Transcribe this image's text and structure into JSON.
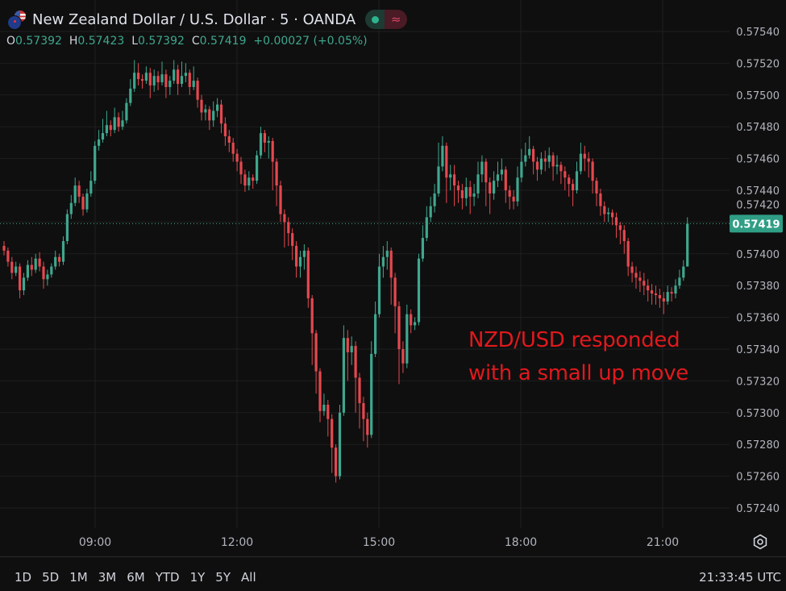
{
  "header": {
    "title": "New Zealand Dollar / U.S. Dollar · 5 · OANDA",
    "flag_icon": "nzd-usd-flags-icon",
    "status_icons": [
      "market-open-dot-icon",
      "delayed-data-icon"
    ],
    "ohlc": {
      "o_label": "O",
      "o": "0.57392",
      "h_label": "H",
      "h": "0.57423",
      "l_label": "L",
      "l": "0.57392",
      "c_label": "C",
      "c": "0.57419",
      "change": "+0.00027 (+0.05%)"
    }
  },
  "annotation": {
    "line1": "NZD/USD responded",
    "line2": "with a small up move",
    "color": "#e0191d"
  },
  "bottom_bar": {
    "ranges": [
      "1D",
      "5D",
      "1M",
      "3M",
      "6M",
      "YTD",
      "1Y",
      "5Y",
      "All"
    ],
    "clock": "21:33:45 UTC",
    "settings_icon": "settings-gear-icon"
  },
  "colors": {
    "background": "#0f0f0f",
    "up": "#3fa78e",
    "down": "#e5484f",
    "grid": "#1f1f1f",
    "last_price_label": "#2f9e85"
  },
  "chart_data": {
    "type": "candlestick",
    "symbol": "NZD/USD",
    "interval": "5",
    "last_price": 0.57419,
    "last_price_label": "0.57419",
    "ylim": [
      0.57225,
      0.5755
    ],
    "y_ticks": [
      "0.57540",
      "0.57520",
      "0.57500",
      "0.57480",
      "0.57460",
      "0.57440",
      "0.57420",
      "0.57400",
      "0.57380",
      "0.57360",
      "0.57340",
      "0.57320",
      "0.57300",
      "0.57280",
      "0.57260",
      "0.57240"
    ],
    "x_ticks": [
      "09:00",
      "12:00",
      "15:00",
      "18:00",
      "21:00"
    ],
    "grid": true,
    "ohlc": [
      [
        0.57405,
        0.57408,
        0.57399,
        0.57402
      ],
      [
        0.57402,
        0.57404,
        0.57392,
        0.57395
      ],
      [
        0.57395,
        0.57398,
        0.57384,
        0.57388
      ],
      [
        0.57388,
        0.57395,
        0.57386,
        0.57392
      ],
      [
        0.57392,
        0.57394,
        0.57372,
        0.57377
      ],
      [
        0.57377,
        0.57388,
        0.57374,
        0.57385
      ],
      [
        0.57385,
        0.57396,
        0.57383,
        0.57393
      ],
      [
        0.57393,
        0.57398,
        0.57386,
        0.5739
      ],
      [
        0.5739,
        0.574,
        0.57388,
        0.57397
      ],
      [
        0.57397,
        0.57401,
        0.57389,
        0.57392
      ],
      [
        0.57392,
        0.57395,
        0.57378,
        0.57384
      ],
      [
        0.57384,
        0.5739,
        0.5738,
        0.57387
      ],
      [
        0.57387,
        0.57394,
        0.57385,
        0.57392
      ],
      [
        0.57392,
        0.57402,
        0.5739,
        0.57398
      ],
      [
        0.57398,
        0.574,
        0.57392,
        0.57395
      ],
      [
        0.57395,
        0.57411,
        0.57393,
        0.57408
      ],
      [
        0.57408,
        0.57428,
        0.57406,
        0.57425
      ],
      [
        0.57425,
        0.57437,
        0.57422,
        0.57432
      ],
      [
        0.57432,
        0.57448,
        0.5743,
        0.57443
      ],
      [
        0.57443,
        0.57446,
        0.57432,
        0.57436
      ],
      [
        0.57436,
        0.57438,
        0.57424,
        0.57428
      ],
      [
        0.57428,
        0.57441,
        0.57426,
        0.57438
      ],
      [
        0.57438,
        0.57452,
        0.57436,
        0.57446
      ],
      [
        0.57446,
        0.57471,
        0.57444,
        0.57468
      ],
      [
        0.57468,
        0.57478,
        0.57465,
        0.57472
      ],
      [
        0.57472,
        0.57485,
        0.5747,
        0.57476
      ],
      [
        0.57476,
        0.5749,
        0.57474,
        0.57481
      ],
      [
        0.57481,
        0.57484,
        0.57474,
        0.57478
      ],
      [
        0.57478,
        0.57492,
        0.57476,
        0.57486
      ],
      [
        0.57486,
        0.57489,
        0.57477,
        0.5748
      ],
      [
        0.5748,
        0.5749,
        0.57478,
        0.57484
      ],
      [
        0.57484,
        0.57498,
        0.57482,
        0.57495
      ],
      [
        0.57495,
        0.5751,
        0.57493,
        0.57504
      ],
      [
        0.57504,
        0.57522,
        0.57502,
        0.57514
      ],
      [
        0.57514,
        0.5752,
        0.57506,
        0.5751
      ],
      [
        0.5751,
        0.57513,
        0.57504,
        0.57509
      ],
      [
        0.57509,
        0.57518,
        0.57507,
        0.57514
      ],
      [
        0.57514,
        0.57517,
        0.57498,
        0.57506
      ],
      [
        0.57506,
        0.57516,
        0.57502,
        0.57512
      ],
      [
        0.57512,
        0.57515,
        0.57503,
        0.57508
      ],
      [
        0.57508,
        0.57521,
        0.57506,
        0.57513
      ],
      [
        0.57513,
        0.57516,
        0.57498,
        0.57505
      ],
      [
        0.57505,
        0.57512,
        0.575,
        0.57509
      ],
      [
        0.57509,
        0.57522,
        0.57507,
        0.57516
      ],
      [
        0.57516,
        0.57519,
        0.575,
        0.57507
      ],
      [
        0.57507,
        0.57521,
        0.57505,
        0.57512
      ],
      [
        0.57512,
        0.5752,
        0.57508,
        0.57514
      ],
      [
        0.57514,
        0.57516,
        0.575,
        0.57505
      ],
      [
        0.57505,
        0.57518,
        0.57503,
        0.57509
      ],
      [
        0.57509,
        0.57511,
        0.57492,
        0.57497
      ],
      [
        0.57497,
        0.575,
        0.57484,
        0.57489
      ],
      [
        0.57489,
        0.57494,
        0.57484,
        0.57491
      ],
      [
        0.57491,
        0.57493,
        0.57478,
        0.57484
      ],
      [
        0.57484,
        0.57496,
        0.5748,
        0.5749
      ],
      [
        0.5749,
        0.57498,
        0.57486,
        0.57494
      ],
      [
        0.57494,
        0.57497,
        0.57476,
        0.57482
      ],
      [
        0.57482,
        0.57486,
        0.57468,
        0.57474
      ],
      [
        0.57474,
        0.57478,
        0.57464,
        0.5747
      ],
      [
        0.5747,
        0.57473,
        0.57458,
        0.57463
      ],
      [
        0.57463,
        0.57466,
        0.57452,
        0.57458
      ],
      [
        0.57458,
        0.57461,
        0.57444,
        0.5745
      ],
      [
        0.5745,
        0.57453,
        0.57439,
        0.57443
      ],
      [
        0.57443,
        0.57452,
        0.5744,
        0.57448
      ],
      [
        0.57448,
        0.5745,
        0.57441,
        0.57446
      ],
      [
        0.57446,
        0.57465,
        0.57444,
        0.57462
      ],
      [
        0.57462,
        0.5748,
        0.5746,
        0.57476
      ],
      [
        0.57476,
        0.57478,
        0.57464,
        0.5747
      ],
      [
        0.5747,
        0.57474,
        0.5746,
        0.57471
      ],
      [
        0.57471,
        0.57473,
        0.5744,
        0.57458
      ],
      [
        0.57458,
        0.5746,
        0.5743,
        0.57443
      ],
      [
        0.57443,
        0.57446,
        0.5742,
        0.57425
      ],
      [
        0.57425,
        0.57428,
        0.57404,
        0.5742
      ],
      [
        0.5742,
        0.57423,
        0.57405,
        0.57413
      ],
      [
        0.57413,
        0.57416,
        0.57396,
        0.57405
      ],
      [
        0.57405,
        0.57408,
        0.57385,
        0.57392
      ],
      [
        0.57392,
        0.57402,
        0.57385,
        0.57398
      ],
      [
        0.57398,
        0.57406,
        0.5739,
        0.57402
      ],
      [
        0.57402,
        0.57404,
        0.57366,
        0.57372
      ],
      [
        0.57372,
        0.57374,
        0.5733,
        0.5735
      ],
      [
        0.5735,
        0.57352,
        0.57312,
        0.57326
      ],
      [
        0.57326,
        0.57328,
        0.57294,
        0.57301
      ],
      [
        0.57301,
        0.57312,
        0.57298,
        0.57305
      ],
      [
        0.57305,
        0.57308,
        0.57285,
        0.57296
      ],
      [
        0.57296,
        0.57299,
        0.57262,
        0.57278
      ],
      [
        0.57278,
        0.5728,
        0.57256,
        0.5726
      ],
      [
        0.5726,
        0.57305,
        0.57258,
        0.573
      ],
      [
        0.573,
        0.57355,
        0.57298,
        0.57347
      ],
      [
        0.57347,
        0.57352,
        0.5732,
        0.57338
      ],
      [
        0.57338,
        0.57348,
        0.5733,
        0.57342
      ],
      [
        0.57342,
        0.57345,
        0.573,
        0.57322
      ],
      [
        0.57322,
        0.57325,
        0.5729,
        0.57306
      ],
      [
        0.57306,
        0.5731,
        0.57282,
        0.57296
      ],
      [
        0.57296,
        0.573,
        0.57278,
        0.57286
      ],
      [
        0.57286,
        0.57345,
        0.57284,
        0.57337
      ],
      [
        0.57337,
        0.5737,
        0.57335,
        0.57362
      ],
      [
        0.57362,
        0.574,
        0.5736,
        0.57392
      ],
      [
        0.57392,
        0.57405,
        0.57385,
        0.57398
      ],
      [
        0.57398,
        0.57408,
        0.5739,
        0.57402
      ],
      [
        0.57402,
        0.57404,
        0.57368,
        0.57385
      ],
      [
        0.57385,
        0.57388,
        0.5735,
        0.57367
      ],
      [
        0.57367,
        0.5737,
        0.57318,
        0.5734
      ],
      [
        0.5734,
        0.57345,
        0.57325,
        0.57331
      ],
      [
        0.57331,
        0.57368,
        0.57328,
        0.57362
      ],
      [
        0.57362,
        0.57365,
        0.5735,
        0.57355
      ],
      [
        0.57355,
        0.5736,
        0.57352,
        0.57357
      ],
      [
        0.57357,
        0.574,
        0.57355,
        0.57397
      ],
      [
        0.57397,
        0.57418,
        0.57395,
        0.5741
      ],
      [
        0.5741,
        0.5743,
        0.57408,
        0.57423
      ],
      [
        0.57423,
        0.57436,
        0.5742,
        0.5743
      ],
      [
        0.5743,
        0.57444,
        0.57426,
        0.57438
      ],
      [
        0.57438,
        0.5747,
        0.57436,
        0.57455
      ],
      [
        0.57455,
        0.57474,
        0.57452,
        0.57468
      ],
      [
        0.57468,
        0.5747,
        0.57432,
        0.57448
      ],
      [
        0.57448,
        0.57456,
        0.5744,
        0.5745
      ],
      [
        0.5745,
        0.57456,
        0.5743,
        0.57443
      ],
      [
        0.57443,
        0.57446,
        0.57432,
        0.5744
      ],
      [
        0.5744,
        0.57444,
        0.57428,
        0.57435
      ],
      [
        0.57435,
        0.57448,
        0.5743,
        0.57442
      ],
      [
        0.57442,
        0.57446,
        0.57425,
        0.57436
      ],
      [
        0.57436,
        0.57444,
        0.5743,
        0.57438
      ],
      [
        0.57438,
        0.57458,
        0.57435,
        0.5745
      ],
      [
        0.5745,
        0.57462,
        0.57445,
        0.57458
      ],
      [
        0.57458,
        0.5746,
        0.5743,
        0.57445
      ],
      [
        0.57445,
        0.57448,
        0.57425,
        0.57438
      ],
      [
        0.57438,
        0.57452,
        0.57434,
        0.57446
      ],
      [
        0.57446,
        0.57458,
        0.57442,
        0.5745
      ],
      [
        0.5745,
        0.5746,
        0.57446,
        0.57453
      ],
      [
        0.57453,
        0.57455,
        0.57432,
        0.5744
      ],
      [
        0.5744,
        0.57443,
        0.57428,
        0.57436
      ],
      [
        0.57436,
        0.5744,
        0.57428,
        0.57433
      ],
      [
        0.57433,
        0.57455,
        0.5743,
        0.57448
      ],
      [
        0.57448,
        0.57466,
        0.57445,
        0.57458
      ],
      [
        0.57458,
        0.5747,
        0.57455,
        0.57462
      ],
      [
        0.57462,
        0.57474,
        0.5746,
        0.57466
      ],
      [
        0.57466,
        0.57468,
        0.5745,
        0.57458
      ],
      [
        0.57458,
        0.57461,
        0.57446,
        0.57453
      ],
      [
        0.57453,
        0.57464,
        0.5745,
        0.5746
      ],
      [
        0.5746,
        0.57465,
        0.57452,
        0.57458
      ],
      [
        0.57458,
        0.57467,
        0.57454,
        0.57462
      ],
      [
        0.57462,
        0.57464,
        0.57446,
        0.57455
      ],
      [
        0.57455,
        0.57462,
        0.5745,
        0.57456
      ],
      [
        0.57456,
        0.57458,
        0.57444,
        0.57452
      ],
      [
        0.57452,
        0.57455,
        0.5744,
        0.57448
      ],
      [
        0.57448,
        0.5745,
        0.57436,
        0.57444
      ],
      [
        0.57444,
        0.57447,
        0.5743,
        0.5744
      ],
      [
        0.5744,
        0.57458,
        0.57438,
        0.57452
      ],
      [
        0.57452,
        0.5747,
        0.5745,
        0.57463
      ],
      [
        0.57463,
        0.57468,
        0.57452,
        0.5746
      ],
      [
        0.5746,
        0.57464,
        0.57448,
        0.57458
      ],
      [
        0.57458,
        0.5746,
        0.57438,
        0.57446
      ],
      [
        0.57446,
        0.57448,
        0.5743,
        0.57438
      ],
      [
        0.57438,
        0.57441,
        0.57424,
        0.5743
      ],
      [
        0.5743,
        0.57433,
        0.5742,
        0.57425
      ],
      [
        0.57425,
        0.57429,
        0.5742,
        0.57426
      ],
      [
        0.57426,
        0.57428,
        0.57418,
        0.57423
      ],
      [
        0.57423,
        0.57426,
        0.5741,
        0.57418
      ],
      [
        0.57418,
        0.5742,
        0.57406,
        0.57415
      ],
      [
        0.57415,
        0.57418,
        0.574,
        0.57408
      ],
      [
        0.57408,
        0.5741,
        0.57386,
        0.57392
      ],
      [
        0.57392,
        0.57395,
        0.57382,
        0.57388
      ],
      [
        0.57388,
        0.57392,
        0.57378,
        0.57385
      ],
      [
        0.57385,
        0.57389,
        0.57376,
        0.57383
      ],
      [
        0.57383,
        0.57388,
        0.57374,
        0.5738
      ],
      [
        0.5738,
        0.57384,
        0.5737,
        0.57377
      ],
      [
        0.57377,
        0.57381,
        0.57368,
        0.57375
      ],
      [
        0.57375,
        0.5738,
        0.57368,
        0.57374
      ],
      [
        0.57374,
        0.57378,
        0.57366,
        0.57372
      ],
      [
        0.57372,
        0.57376,
        0.57362,
        0.5737
      ],
      [
        0.5737,
        0.5738,
        0.57368,
        0.57376
      ],
      [
        0.57376,
        0.57379,
        0.5737,
        0.57375
      ],
      [
        0.57375,
        0.57384,
        0.57372,
        0.5738
      ],
      [
        0.5738,
        0.5739,
        0.57378,
        0.57385
      ],
      [
        0.57385,
        0.57396,
        0.57383,
        0.57392
      ],
      [
        0.57392,
        0.57423,
        0.57392,
        0.57419
      ]
    ]
  }
}
